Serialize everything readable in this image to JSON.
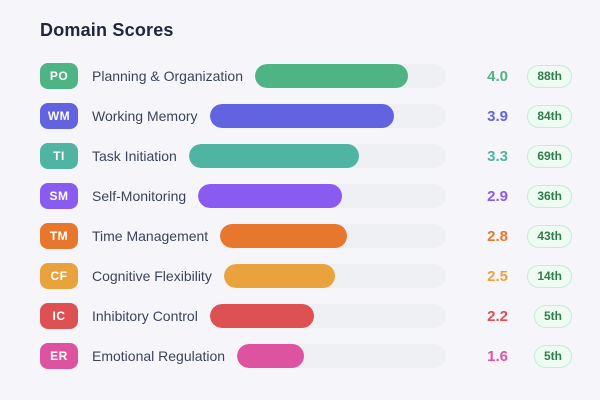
{
  "title": "Domain Scores",
  "scale_max": 5,
  "rows": [
    {
      "code": "PO",
      "label": "Planning & Organization",
      "score": "4.0",
      "percentile": "88th",
      "color": "#4eb483"
    },
    {
      "code": "WM",
      "label": "Working Memory",
      "score": "3.9",
      "percentile": "84th",
      "color": "#6263e0"
    },
    {
      "code": "TI",
      "label": "Task Initiation",
      "score": "3.3",
      "percentile": "69th",
      "color": "#50b4a2"
    },
    {
      "code": "SM",
      "label": "Self-Monitoring",
      "score": "2.9",
      "percentile": "36th",
      "color": "#8a5bf0"
    },
    {
      "code": "TM",
      "label": "Time Management",
      "score": "2.8",
      "percentile": "43th",
      "color": "#e7772d"
    },
    {
      "code": "CF",
      "label": "Cognitive Flexibility",
      "score": "2.5",
      "percentile": "14th",
      "color": "#eaa33c"
    },
    {
      "code": "IC",
      "label": "Inhibitory Control",
      "score": "2.2",
      "percentile": "5th",
      "color": "#de5152"
    },
    {
      "code": "ER",
      "label": "Emotional Regulation",
      "score": "1.6",
      "percentile": "5th",
      "color": "#de53a0"
    }
  ],
  "pill_style": {
    "bg": "#eefbf2",
    "border": "#c7ecd4",
    "text_color": "#2f7c4f"
  },
  "track_color": "#eef0f4",
  "background_color": "#f6f6fa",
  "chart_data": {
    "type": "bar",
    "orientation": "horizontal",
    "title": "Domain Scores",
    "categories": [
      "Planning & Organization",
      "Working Memory",
      "Task Initiation",
      "Self-Monitoring",
      "Time Management",
      "Cognitive Flexibility",
      "Inhibitory Control",
      "Emotional Regulation"
    ],
    "category_codes": [
      "PO",
      "WM",
      "TI",
      "SM",
      "TM",
      "CF",
      "IC",
      "ER"
    ],
    "values": [
      4.0,
      3.9,
      3.3,
      2.9,
      2.8,
      2.5,
      2.2,
      1.6
    ],
    "percentiles": [
      "88th",
      "84th",
      "69th",
      "36th",
      "43th",
      "14th",
      "5th",
      "5th"
    ],
    "bar_colors": [
      "#4eb483",
      "#6263e0",
      "#50b4a2",
      "#8a5bf0",
      "#e7772d",
      "#eaa33c",
      "#de5152",
      "#de53a0"
    ],
    "xlim": [
      0,
      5
    ],
    "grid": false,
    "legend": false
  }
}
